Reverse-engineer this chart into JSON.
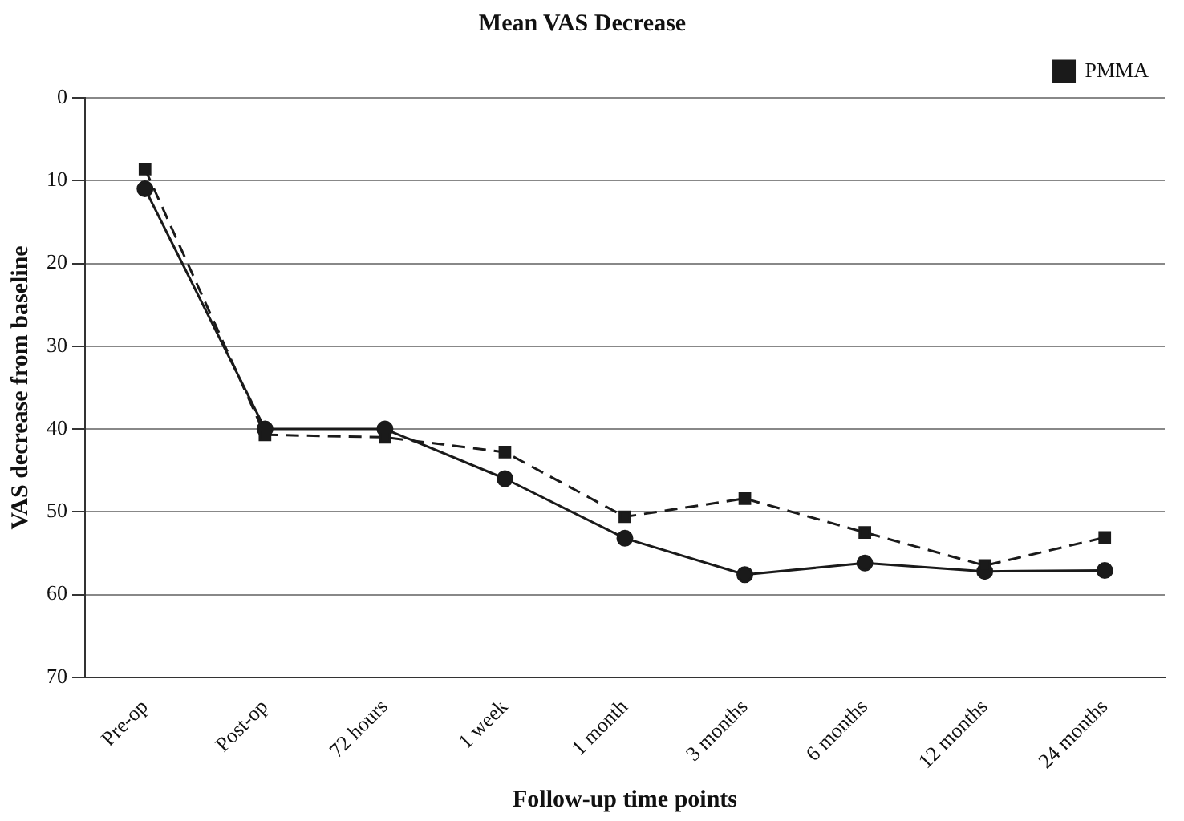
{
  "chart_data": {
    "type": "line",
    "title": "Mean VAS Decrease",
    "xlabel": "Follow-up time points",
    "ylabel": "VAS decrease from baseline",
    "categories": [
      "Pre-op",
      "Post-op",
      "72 hours",
      "1 week",
      "1 month",
      "3 months",
      "6 months",
      "12 months",
      "24 months"
    ],
    "series": [
      {
        "color": "#1a1a1a",
        "marker": "circle",
        "line_style": "solid",
        "values": [
          11,
          40,
          40,
          46,
          53.2,
          57.6,
          56.2,
          57.2,
          57.1
        ]
      },
      {
        "name": "PMMA",
        "color": "#1a1a1a",
        "marker": "square",
        "line_style": "dashed",
        "values": [
          8.6,
          40.7,
          41,
          42.8,
          50.6,
          48.4,
          52.5,
          56.5,
          53.1
        ]
      }
    ],
    "ylim": [
      70,
      0
    ],
    "yticks": [
      0,
      10,
      20,
      30,
      40,
      50,
      60,
      70
    ],
    "grid": "y",
    "legend": "top right"
  }
}
